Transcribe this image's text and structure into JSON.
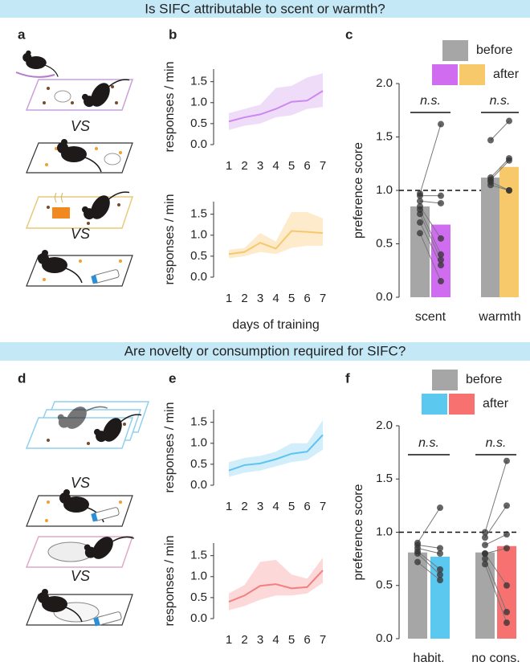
{
  "banners": [
    "Is SIFC attributable to scent or warmth?",
    "Are novelty or consumption required for SIFC?"
  ],
  "panel_labels": [
    "a",
    "b",
    "c",
    "d",
    "e",
    "f"
  ],
  "vs_labels": [
    "VS",
    "VS",
    "VS",
    "VS"
  ],
  "chart_data": [
    {
      "type": "line",
      "ylabel": "responses / min",
      "x": [
        1,
        2,
        3,
        4,
        5,
        6,
        7
      ],
      "xlim": [
        1,
        7
      ],
      "xticks": [
        1,
        2,
        3,
        4,
        5,
        6,
        7
      ],
      "ylim": [
        0,
        1.8
      ],
      "yticks": [
        {
          "value": 0,
          "label": "0.0"
        },
        0.5,
        {
          "value": 1,
          "label": "1.0"
        },
        1.5
      ],
      "series": [
        {
          "color": "#cc88ee",
          "band_color": "#efdcf9",
          "values": [
            0.55,
            0.65,
            0.72,
            0.85,
            1.02,
            1.05,
            1.28
          ],
          "lower": [
            0.35,
            0.45,
            0.5,
            0.65,
            0.7,
            0.85,
            0.9
          ],
          "upper": [
            0.75,
            0.85,
            0.95,
            1.35,
            1.4,
            1.6,
            1.7
          ]
        }
      ]
    },
    {
      "type": "line",
      "ylabel": "responses / min",
      "xlabel": "days of training",
      "x": [
        1,
        2,
        3,
        4,
        5,
        6,
        7
      ],
      "xlim": [
        1,
        7
      ],
      "xticks": [
        1,
        2,
        3,
        4,
        5,
        6,
        7
      ],
      "ylim": [
        0,
        1.8
      ],
      "yticks": [
        {
          "value": 0,
          "label": "0.0"
        },
        0.5,
        {
          "value": 1,
          "label": "1.0"
        },
        1.5
      ],
      "series": [
        {
          "color": "#f6c86e",
          "band_color": "#fdebcb",
          "values": [
            0.55,
            0.6,
            0.82,
            0.68,
            1.1,
            1.08,
            1.05
          ],
          "lower": [
            0.45,
            0.5,
            0.6,
            0.55,
            0.7,
            0.75,
            0.75
          ],
          "upper": [
            0.65,
            0.7,
            1.05,
            0.85,
            1.55,
            1.55,
            1.4
          ]
        }
      ]
    },
    {
      "type": "bar",
      "ylabel": "preference score",
      "categories": [
        "scent",
        "warmth"
      ],
      "annotations": [
        "n.s.",
        "n.s."
      ],
      "reference_line": 1,
      "ylim": [
        0,
        2
      ],
      "yticks": [
        {
          "value": 0,
          "label": "0.0"
        },
        0.5,
        {
          "value": 1,
          "label": "1.0"
        },
        1.5,
        {
          "value": 2,
          "label": "2.0"
        }
      ],
      "series": [
        {
          "name": "before",
          "color": "#a6a6a6",
          "values": [
            0.85,
            1.12
          ],
          "points": [
            [
              0.97,
              0.95,
              0.9,
              0.85,
              0.82,
              0.78,
              0.7,
              0.6
            ],
            [
              1.47,
              1.12,
              1.1,
              1.08,
              1.05
            ]
          ]
        },
        {
          "name": "after",
          "colors": [
            "#cf6cf0",
            "#f8c96b"
          ],
          "values": [
            0.68,
            1.22
          ],
          "points": [
            [
              1.62,
              0.95,
              0.88,
              0.55,
              0.4,
              0.35,
              0.3,
              0.15
            ],
            [
              1.65,
              1.3,
              1.28,
              1.0,
              1.0
            ]
          ]
        }
      ]
    },
    {
      "type": "line",
      "ylabel": "responses / min",
      "x": [
        1,
        2,
        3,
        4,
        5,
        6,
        7
      ],
      "xlim": [
        1,
        7
      ],
      "xticks": [
        1,
        2,
        3,
        4,
        5,
        6,
        7
      ],
      "ylim": [
        0,
        1.8
      ],
      "yticks": [
        {
          "value": 0,
          "label": "0.0"
        },
        0.5,
        {
          "value": 1,
          "label": "1.0"
        },
        1.5
      ],
      "series": [
        {
          "color": "#5cc4ee",
          "band_color": "#d2eefa",
          "values": [
            0.35,
            0.48,
            0.52,
            0.62,
            0.75,
            0.8,
            1.2
          ],
          "lower": [
            0.2,
            0.3,
            0.35,
            0.45,
            0.55,
            0.6,
            0.85
          ],
          "upper": [
            0.55,
            0.65,
            0.7,
            0.8,
            1.0,
            1.0,
            1.55
          ]
        }
      ]
    },
    {
      "type": "line",
      "ylabel": "responses / min",
      "x": [
        1,
        2,
        3,
        4,
        5,
        6,
        7
      ],
      "xlim": [
        1,
        7
      ],
      "xticks": [
        1,
        2,
        3,
        4,
        5,
        6,
        7
      ],
      "ylim": [
        0,
        1.8
      ],
      "yticks": [
        {
          "value": 0,
          "label": "0.0"
        },
        0.5,
        {
          "value": 1,
          "label": "1.0"
        },
        1.5
      ],
      "series": [
        {
          "color": "#f47f7f",
          "band_color": "#fcd8d8",
          "values": [
            0.4,
            0.55,
            0.78,
            0.82,
            0.72,
            0.75,
            1.15
          ],
          "lower": [
            0.2,
            0.3,
            0.45,
            0.55,
            0.55,
            0.6,
            0.85
          ],
          "upper": [
            0.6,
            0.8,
            1.35,
            1.4,
            1.05,
            0.95,
            1.45
          ]
        }
      ]
    },
    {
      "type": "bar",
      "ylabel": "preference score",
      "categories": [
        "habit.",
        "no cons."
      ],
      "annotations": [
        "n.s.",
        "n.s."
      ],
      "reference_line": 1,
      "ylim": [
        0,
        2
      ],
      "yticks": [
        {
          "value": 0,
          "label": "0.0"
        },
        0.5,
        {
          "value": 1,
          "label": "1.0"
        },
        1.5,
        {
          "value": 2,
          "label": "2.0"
        }
      ],
      "series": [
        {
          "name": "before",
          "color": "#a6a6a6",
          "values": [
            0.81,
            0.81
          ],
          "points": [
            [
              0.9,
              0.88,
              0.85,
              0.82,
              0.8,
              0.72
            ],
            [
              1.0,
              0.95,
              0.88,
              0.8,
              0.8,
              0.75,
              0.7
            ]
          ]
        },
        {
          "name": "after",
          "colors": [
            "#5bc8f0",
            "#f87171"
          ],
          "values": [
            0.77,
            0.87
          ],
          "points": [
            [
              1.23,
              0.85,
              0.8,
              0.65,
              0.6,
              0.55
            ],
            [
              1.67,
              1.25,
              0.98,
              0.85,
              0.5,
              0.25,
              0.15
            ]
          ]
        }
      ]
    }
  ]
}
